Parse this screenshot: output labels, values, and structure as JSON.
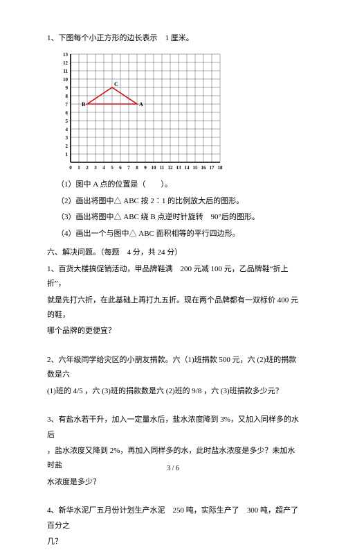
{
  "q1": {
    "stem": "1、下图每个小正方形的边长表示　1 厘米。",
    "sub1": "（1）图中 A 点的位置是（　　）。",
    "sub2": "（2）画出将图中△ ABC 按 2∶1 的比例放大后的图形。",
    "sub3": "（3）画出将图中△ ABC 绕 B 点逆时针旋转　90°后的图形。",
    "sub4": "（4）画出一个与图中△ ABC 面积相等的平行四边形。"
  },
  "section6": "六、解决问题。（每题　4 分，共 24 分）",
  "p1": {
    "l1": "1、百货大楼搞促销活动，甲品牌鞋满　200 元减 100 元，乙品牌鞋“折上折”，",
    "l2": "就是先打六折，在此基础上再打九五折。现在两个品牌都有一双标价 400 元的鞋，",
    "l3": "哪个品牌的更便宜？"
  },
  "p2": {
    "l1": "2、六年级同学给灾区的小朋友捐款。六（1)班捐款 500 元，六 (2)班的捐款数是六",
    "l2": "(1)班的 4/5 ，六 (3)班的捐款数是六 (2)班的 9/8 ，六 (3)班捐款多少元？"
  },
  "p3": {
    "l1": "3、有盐水若干升，加入一定量水后，盐水浓度降到 3%，又加入同样多的水后",
    "l2": "，盐水浓度又降到 2%，再加入同样多的水，此时盐水浓度是多少？未加水时盐",
    "l3": "水浓度是多少？"
  },
  "p4": {
    "l1": "4、新华水泥厂五月份计划生产水泥　250 吨，实际生产了　300 吨，超产了百分之",
    "l2": "几？"
  },
  "footer": "3 / 6",
  "chart": {
    "cols": 18,
    "rows": 13,
    "cell": 12,
    "x_labels": [
      "0",
      "1",
      "2",
      "3",
      "4",
      "5",
      "6",
      "7",
      "8",
      "9",
      "10",
      "11",
      "12",
      "13",
      "14",
      "15",
      "16",
      "17",
      "18"
    ],
    "y_labels": [
      "1",
      "2",
      "3",
      "4",
      "5",
      "6",
      "7",
      "8",
      "9",
      "10",
      "11",
      "12",
      "13"
    ],
    "triangle": {
      "A": [
        8,
        7
      ],
      "B": [
        2,
        7
      ],
      "C": [
        5,
        9
      ]
    },
    "labels": {
      "A": "A",
      "B": "B",
      "C": "C"
    },
    "grid_color": "#555555",
    "axis_color": "#000000",
    "tri_color": "#d01010",
    "tick_font": 7,
    "label_font": 8
  }
}
